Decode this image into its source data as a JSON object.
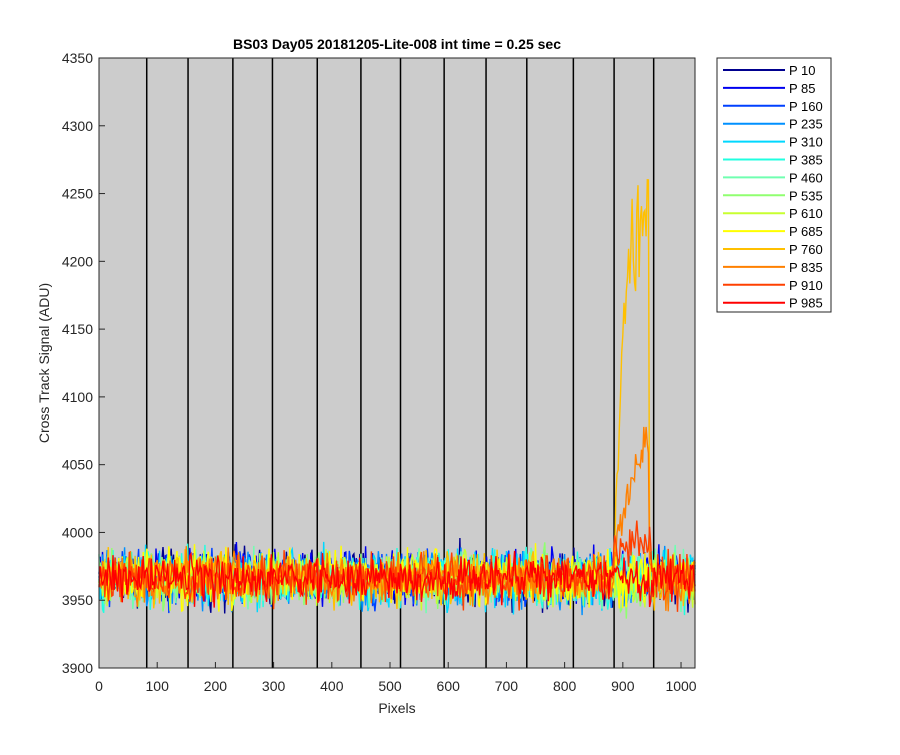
{
  "chart_data": {
    "type": "line",
    "title": "BS03 Day05 20181205-Lite-008 int time = 0.25 sec",
    "xlabel": "Pixels",
    "ylabel": "Cross Track Signal (ADU)",
    "xlim": [
      0,
      1024
    ],
    "ylim": [
      3900,
      4350
    ],
    "xticks": [
      0,
      100,
      200,
      300,
      400,
      500,
      600,
      700,
      800,
      900,
      1000
    ],
    "yticks": [
      3900,
      3950,
      4000,
      4050,
      4100,
      4150,
      4200,
      4250,
      4300,
      4350
    ],
    "vertical_lines_x": [
      82,
      153,
      230,
      298,
      375,
      450,
      518,
      593,
      665,
      735,
      815,
      885,
      953
    ],
    "background_color": "#cccccc",
    "legend_position": "outside-top-right",
    "series": [
      {
        "name": "P 10",
        "color": "#00008f",
        "baseline": 3967,
        "noise": 11,
        "segments": []
      },
      {
        "name": "P 85",
        "color": "#0000ef",
        "baseline": 3967,
        "noise": 11,
        "segments": []
      },
      {
        "name": "P 160",
        "color": "#0040ff",
        "baseline": 3966,
        "noise": 11,
        "segments": []
      },
      {
        "name": "P 235",
        "color": "#0090ff",
        "baseline": 3966,
        "noise": 11,
        "segments": []
      },
      {
        "name": "P 310",
        "color": "#00d8ff",
        "baseline": 3966,
        "noise": 11,
        "segments": []
      },
      {
        "name": "P 385",
        "color": "#20ffe0",
        "baseline": 3966,
        "noise": 11,
        "segments": []
      },
      {
        "name": "P 460",
        "color": "#70ffb0",
        "baseline": 3966,
        "noise": 11,
        "segments": []
      },
      {
        "name": "P 535",
        "color": "#90ff70",
        "baseline": 3966,
        "noise": 10,
        "segments": [
          {
            "x0": 885,
            "x1": 950,
            "y0": 3955,
            "y1": 3958
          }
        ]
      },
      {
        "name": "P 610",
        "color": "#c8ff30",
        "baseline": 3966,
        "noise": 10,
        "segments": [
          {
            "x0": 885,
            "x1": 950,
            "y0": 3960,
            "y1": 3962
          }
        ]
      },
      {
        "name": "P 685",
        "color": "#ffff00",
        "baseline": 3967,
        "noise": 11,
        "segments": []
      },
      {
        "name": "P 760",
        "color": "#ffc000",
        "baseline": 3966,
        "noise": 10,
        "segments": [
          {
            "x0": 885,
            "x1": 905,
            "y0": 3985,
            "y1": 4190
          },
          {
            "x0": 905,
            "x1": 945,
            "y0": 4190,
            "y1": 4260
          }
        ]
      },
      {
        "name": "P 835",
        "color": "#ff8000",
        "baseline": 3966,
        "noise": 10,
        "segments": [
          {
            "x0": 885,
            "x1": 905,
            "y0": 3985,
            "y1": 4020
          },
          {
            "x0": 905,
            "x1": 945,
            "y0": 4020,
            "y1": 4065
          }
        ]
      },
      {
        "name": "P 910",
        "color": "#ff4000",
        "baseline": 3966,
        "noise": 10,
        "segments": [
          {
            "x0": 885,
            "x1": 950,
            "y0": 3985,
            "y1": 3992
          }
        ]
      },
      {
        "name": "P 985",
        "color": "#ff0000",
        "baseline": 3966,
        "noise": 9,
        "segments": []
      }
    ]
  }
}
